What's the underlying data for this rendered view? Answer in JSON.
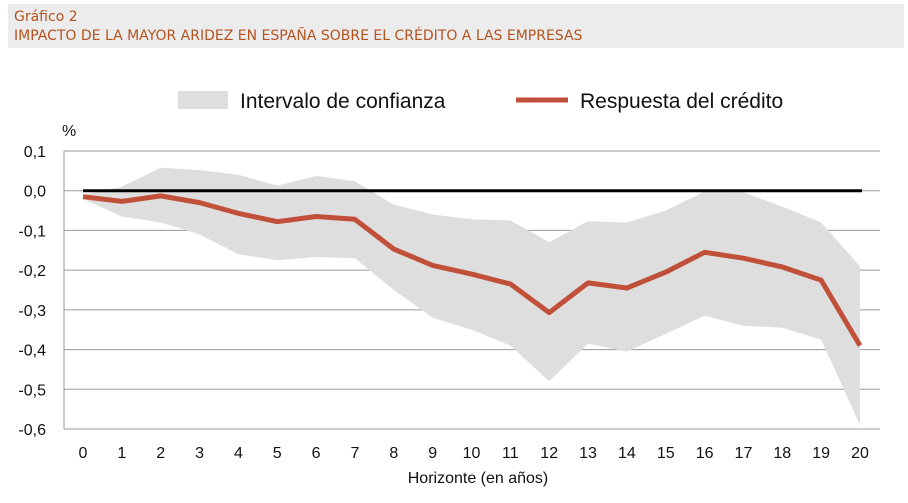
{
  "header": {
    "number": "Gráfico 2",
    "title": "IMPACTO DE LA MAYOR ARIDEZ EN ESPAÑA SOBRE EL CRÉDITO A LAS EMPRESAS"
  },
  "colors": {
    "accent": "#b5531f",
    "band": "#dedede",
    "line": "#c0503a",
    "zero": "#000000",
    "grid": "#9a9a9a"
  },
  "chart_data": {
    "type": "line",
    "xlabel": "Horizonte (en años)",
    "ylabel": "%",
    "x": [
      0,
      1,
      2,
      3,
      4,
      5,
      6,
      7,
      8,
      9,
      10,
      11,
      12,
      13,
      14,
      15,
      16,
      17,
      18,
      19,
      20
    ],
    "xticks": [
      "0",
      "1",
      "2",
      "3",
      "4",
      "5",
      "6",
      "7",
      "8",
      "9",
      "10",
      "11",
      "12",
      "13",
      "14",
      "15",
      "16",
      "17",
      "18",
      "19",
      "20"
    ],
    "ylim": [
      -0.6,
      0.1
    ],
    "yticks": [
      {
        "v": 0.1,
        "label": "0,1"
      },
      {
        "v": 0.0,
        "label": "0,0"
      },
      {
        "v": -0.1,
        "label": "-0,1"
      },
      {
        "v": -0.2,
        "label": "-0,2"
      },
      {
        "v": -0.3,
        "label": "-0,3"
      },
      {
        "v": -0.4,
        "label": "-0,4"
      },
      {
        "v": -0.5,
        "label": "-0,5"
      },
      {
        "v": -0.6,
        "label": "-0,6"
      }
    ],
    "grid": true,
    "legend_position": "top",
    "series": [
      {
        "name": "Respuesta del crédito",
        "values": [
          -0.015,
          -0.027,
          -0.013,
          -0.03,
          -0.057,
          -0.078,
          -0.065,
          -0.072,
          -0.147,
          -0.188,
          -0.21,
          -0.235,
          -0.307,
          -0.232,
          -0.245,
          -0.205,
          -0.155,
          -0.17,
          -0.192,
          -0.225,
          -0.39
        ]
      }
    ],
    "band": {
      "name": "Intervalo de confianza",
      "upper": [
        -0.01,
        0.01,
        0.058,
        0.052,
        0.04,
        0.013,
        0.037,
        0.024,
        -0.035,
        -0.06,
        -0.072,
        -0.075,
        -0.13,
        -0.077,
        -0.08,
        -0.05,
        -0.002,
        -0.004,
        -0.04,
        -0.08,
        -0.19
      ],
      "lower": [
        -0.02,
        -0.065,
        -0.08,
        -0.11,
        -0.16,
        -0.175,
        -0.167,
        -0.17,
        -0.25,
        -0.32,
        -0.35,
        -0.39,
        -0.48,
        -0.385,
        -0.405,
        -0.36,
        -0.315,
        -0.34,
        -0.345,
        -0.375,
        -0.59
      ]
    },
    "zero_line": 0.0
  }
}
